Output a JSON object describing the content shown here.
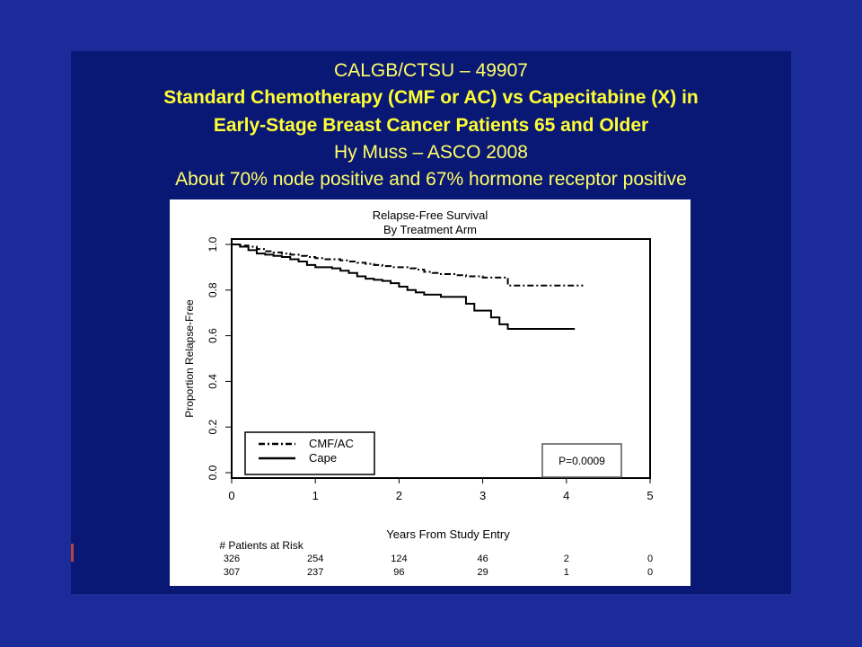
{
  "slide": {
    "heading": "CALGB/CTSU – 49907",
    "subtitle_line1": "Standard Chemotherapy (CMF or AC) vs Capecitabine (X) in",
    "subtitle_line2": "Early-Stage Breast Cancer Patients 65 and Older",
    "presenter": "Hy Muss – ASCO 2008",
    "note": "About 70% node positive and 67% hormone receptor positive"
  },
  "colors": {
    "background": "#1c2b9a",
    "slide": "#0a1875",
    "title_text": "#ffff33",
    "plot_line": "#000000"
  },
  "chart_data": {
    "type": "line",
    "title": "Relapse-Free Survival",
    "subtitle": "By Treatment Arm",
    "xlabel": "Years From Study Entry",
    "ylabel": "Proportion Relapse-Free",
    "xlim": [
      0,
      5
    ],
    "ylim": [
      0,
      1
    ],
    "x_ticks": [
      "0",
      "1",
      "2",
      "3",
      "4",
      "5"
    ],
    "y_ticks": [
      "0.0",
      "0.2",
      "0.4",
      "0.6",
      "0.8",
      "1.0"
    ],
    "grid": false,
    "legend_position": "bottom-left",
    "annotation": "P=0.0009",
    "series": [
      {
        "name": "CMF/AC",
        "style": "dashdot",
        "x": [
          0,
          0.1,
          0.2,
          0.3,
          0.4,
          0.5,
          0.6,
          0.7,
          0.8,
          0.9,
          1.0,
          1.1,
          1.2,
          1.3,
          1.4,
          1.5,
          1.6,
          1.7,
          1.8,
          1.9,
          2.0,
          2.1,
          2.2,
          2.3,
          2.4,
          2.5,
          2.6,
          2.7,
          2.8,
          2.9,
          3.0,
          3.1,
          3.2,
          3.3,
          3.4,
          3.6,
          3.8,
          4.0,
          4.2
        ],
        "y": [
          1.0,
          0.995,
          0.99,
          0.98,
          0.97,
          0.965,
          0.96,
          0.955,
          0.95,
          0.945,
          0.94,
          0.935,
          0.935,
          0.93,
          0.925,
          0.92,
          0.915,
          0.91,
          0.905,
          0.9,
          0.9,
          0.895,
          0.89,
          0.88,
          0.875,
          0.87,
          0.87,
          0.865,
          0.86,
          0.86,
          0.855,
          0.855,
          0.855,
          0.82,
          0.82,
          0.82,
          0.82,
          0.82,
          0.82
        ]
      },
      {
        "name": "Cape",
        "style": "solid",
        "x": [
          0,
          0.1,
          0.2,
          0.3,
          0.4,
          0.5,
          0.6,
          0.7,
          0.8,
          0.9,
          1.0,
          1.1,
          1.2,
          1.3,
          1.4,
          1.5,
          1.6,
          1.7,
          1.8,
          1.9,
          2.0,
          2.1,
          2.2,
          2.3,
          2.4,
          2.5,
          2.6,
          2.7,
          2.8,
          2.9,
          3.0,
          3.1,
          3.2,
          3.3,
          3.5,
          3.7,
          3.9,
          4.1
        ],
        "y": [
          1.0,
          0.99,
          0.975,
          0.96,
          0.955,
          0.95,
          0.945,
          0.935,
          0.925,
          0.91,
          0.9,
          0.9,
          0.895,
          0.885,
          0.875,
          0.86,
          0.85,
          0.845,
          0.84,
          0.83,
          0.815,
          0.8,
          0.79,
          0.78,
          0.78,
          0.77,
          0.77,
          0.77,
          0.74,
          0.71,
          0.71,
          0.68,
          0.65,
          0.63,
          0.63,
          0.63,
          0.63,
          0.63
        ]
      }
    ],
    "risk_table": {
      "header": "# Patients at Risk",
      "times": [
        0,
        1,
        2,
        3,
        4,
        5
      ],
      "rows": [
        [
          "326",
          "254",
          "124",
          "46",
          "2",
          "0"
        ],
        [
          "307",
          "237",
          "96",
          "29",
          "1",
          "0"
        ]
      ]
    }
  }
}
